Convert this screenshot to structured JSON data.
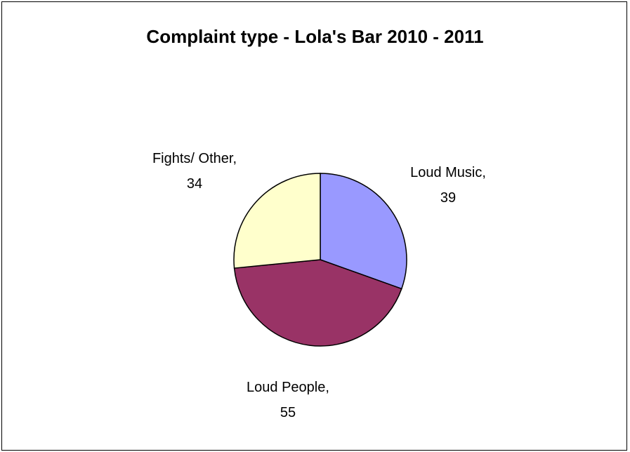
{
  "chart_data": {
    "type": "pie",
    "title": "Complaint type - Lola's Bar 2010 - 2011",
    "slices": [
      {
        "label": "Loud Music",
        "value": 39,
        "color": "#9999ff",
        "label_line1": "Loud Music,",
        "label_line2": "39"
      },
      {
        "label": "Loud People",
        "value": 55,
        "color": "#993366",
        "label_line1": "Loud People,",
        "label_line2": "55"
      },
      {
        "label": "Fights/ Other",
        "value": 34,
        "color": "#ffffcc",
        "label_line1": "Fights/ Other,",
        "label_line2": "34"
      }
    ],
    "start_angle_deg": 0,
    "direction": "clockwise",
    "legend": "none"
  }
}
